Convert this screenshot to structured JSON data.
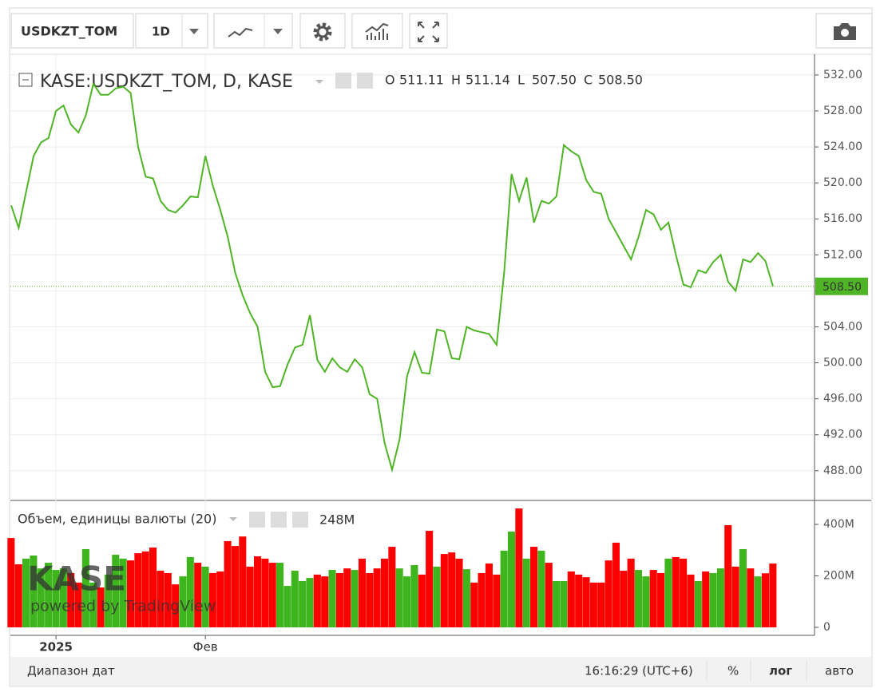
{
  "toolbar": {
    "symbol": "USDKZT_TOM",
    "interval": "1D"
  },
  "chart_data": [
    {
      "type": "line",
      "title": "KASE:USDKZT_TOM, D, KASE",
      "ohlc_keys": [
        "O",
        "H",
        "L",
        "C"
      ],
      "ohlc": [
        511.11,
        511.14,
        {
          "value": 507.5,
          "label": "507.50"
        },
        {
          "value": 508.5,
          "label": "508.50"
        }
      ],
      "color": "#4fb526",
      "grid": true,
      "log_scale": false,
      "categories": [
        null,
        null,
        null,
        null,
        null,
        null,
        "2025",
        null,
        null,
        null,
        null,
        null,
        null,
        null,
        null,
        null,
        null,
        null,
        null,
        null,
        null,
        null,
        null,
        null,
        null,
        null,
        "Фев",
        null,
        null,
        null,
        null,
        null,
        null,
        null,
        null,
        null,
        null,
        null,
        null,
        null,
        null,
        null,
        null,
        null,
        null,
        null,
        null,
        null,
        null,
        null,
        null,
        null,
        null,
        null,
        null,
        null,
        null,
        null,
        null,
        null,
        null,
        null,
        null,
        null,
        null,
        null,
        null,
        null,
        null,
        null,
        null,
        null,
        null,
        null,
        null,
        null,
        null,
        null,
        null,
        null,
        null,
        null,
        null,
        null,
        null,
        null,
        null,
        null,
        null,
        null,
        null,
        null,
        null,
        null,
        null,
        null,
        null,
        null,
        null,
        null,
        null,
        null,
        null
      ],
      "values": [
        517.5,
        515,
        519,
        523,
        524.5,
        525,
        528,
        528.6,
        526.5,
        525.6,
        527.5,
        531,
        529.8,
        529.8,
        530.5,
        530.7,
        530,
        524,
        520.7,
        520.5,
        518,
        517,
        516.7,
        517.5,
        518.5,
        518.4,
        523,
        519.7,
        517,
        514,
        510,
        507.5,
        505.5,
        504,
        499,
        497.3,
        497.4,
        499.8,
        501.7,
        502,
        505.3,
        500.3,
        499,
        500.5,
        499.5,
        499,
        500.4,
        499.5,
        496.5,
        496,
        491.1,
        488.1,
        491.5,
        498.5,
        501.2,
        498.9,
        498.8,
        503.7,
        503.5,
        500.5,
        500.4,
        504,
        503.6,
        503.4,
        503.2,
        502,
        510,
        521,
        518,
        520.6,
        515.6,
        518,
        517.7,
        518.5,
        524.2,
        523.5,
        523,
        520.3,
        519,
        518.8,
        516,
        514.5,
        513,
        511.5,
        514,
        517,
        516.5,
        514.8,
        515.6,
        512,
        508.7,
        508.4,
        510.3,
        510,
        511.2,
        512,
        509,
        508,
        511.5,
        511.2,
        512.2,
        511.3,
        508.5
      ],
      "ylim": [
        484.7,
        534.3
      ],
      "yticks": [
        {
          "value": 488,
          "label": "488.00"
        },
        {
          "value": 492,
          "label": "492.00"
        },
        {
          "value": 496,
          "label": "496.00"
        },
        {
          "value": 500,
          "label": "500.00"
        },
        {
          "value": 504,
          "label": "504.00"
        },
        {
          "value": 508,
          "label": "508.00"
        },
        {
          "value": 512,
          "label": "512.00"
        },
        {
          "value": 516,
          "label": "516.00"
        },
        {
          "value": 520,
          "label": "520.00"
        },
        {
          "value": 524,
          "label": "524.00"
        },
        {
          "value": 528,
          "label": "528.00"
        },
        {
          "value": 532,
          "label": "532.00"
        }
      ]
    },
    {
      "type": "bar",
      "title": "Объем, единицы валюты (20)",
      "legend_value": {
        "value": 248000000.0,
        "label": "248M"
      },
      "up_color": "#3fb51d",
      "down_color": "#ff0000",
      "values": [
        347000000.0,
        245000000.0,
        267000000.0,
        279000000.0,
        229000000.0,
        251000000.0,
        223000000.0,
        229000000.0,
        211000000.0,
        174000000.0,
        304000000.0,
        174000000.0,
        155000000.0,
        205000000.0,
        282000000.0,
        267000000.0,
        260000000.0,
        288000000.0,
        295000000.0,
        310000000.0,
        220000000.0,
        211000000.0,
        167000000.0,
        198000000.0,
        273000000.0,
        251000000.0,
        236000000.0,
        211000000.0,
        217000000.0,
        335000000.0,
        316000000.0,
        353000000.0,
        236000000.0,
        276000000.0,
        267000000.0,
        251000000.0,
        251000000.0,
        161000000.0,
        220000000.0,
        180000000.0,
        192000000.0,
        205000000.0,
        198000000.0,
        223000000.0,
        211000000.0,
        229000000.0,
        223000000.0,
        267000000.0,
        211000000.0,
        229000000.0,
        267000000.0,
        313000000.0,
        229000000.0,
        198000000.0,
        242000000.0,
        205000000.0,
        375000000.0,
        236000000.0,
        285000000.0,
        291000000.0,
        267000000.0,
        226000000.0,
        174000000.0,
        211000000.0,
        248000000.0,
        205000000.0,
        298000000.0,
        372000000.0,
        462000000.0,
        267000000.0,
        313000000.0,
        298000000.0,
        251000000.0,
        180000000.0,
        180000000.0,
        217000000.0,
        205000000.0,
        195000000.0,
        174000000.0,
        174000000.0,
        260000000.0,
        329000000.0,
        220000000.0,
        267000000.0,
        223000000.0,
        198000000.0,
        223000000.0,
        211000000.0,
        267000000.0,
        273000000.0,
        267000000.0,
        205000000.0,
        180000000.0,
        217000000.0,
        211000000.0,
        229000000.0,
        397000000.0,
        236000000.0,
        304000000.0,
        229000000.0,
        198000000.0,
        210000000.0,
        248000000.0
      ],
      "ylim": [
        -31000000.0,
        493000000.0
      ],
      "yticks": [
        0,
        {
          "value": 200000000.0,
          "label": "200M"
        },
        {
          "value": 400000000.0,
          "label": "400M"
        }
      ]
    }
  ],
  "watermark": {
    "logo": "KASE",
    "credit": "powered by TradingView"
  },
  "footer": {
    "range": "Диапазон дат",
    "time": "16:16:29 (UTC+6)",
    "percent": "%",
    "log": "лог",
    "auto": "авто"
  }
}
